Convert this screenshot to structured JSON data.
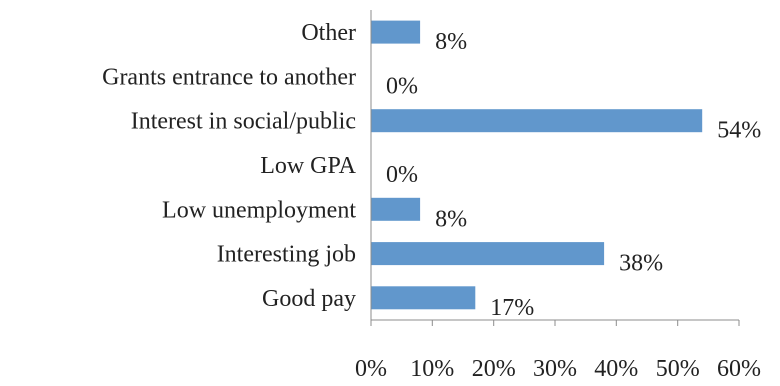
{
  "chart_data": {
    "type": "bar",
    "orientation": "horizontal",
    "categories": [
      "Good pay",
      "Interesting job",
      "Low unemployment",
      "Low GPA",
      "Interest in social/public",
      "Grants entrance to another",
      "Other"
    ],
    "values": [
      17,
      38,
      8,
      0,
      54,
      0,
      8
    ],
    "value_labels": [
      "17%",
      "38%",
      "8%",
      "0%",
      "54%",
      "0%",
      "8%"
    ],
    "x_ticks": [
      "0%",
      "10%",
      "20%",
      "30%",
      "40%",
      "50%",
      "60%"
    ],
    "xlim": [
      0,
      60
    ],
    "title": "",
    "xlabel": "",
    "ylabel": "",
    "grid": false,
    "legend": "none",
    "bar_color": "#6197cc"
  }
}
